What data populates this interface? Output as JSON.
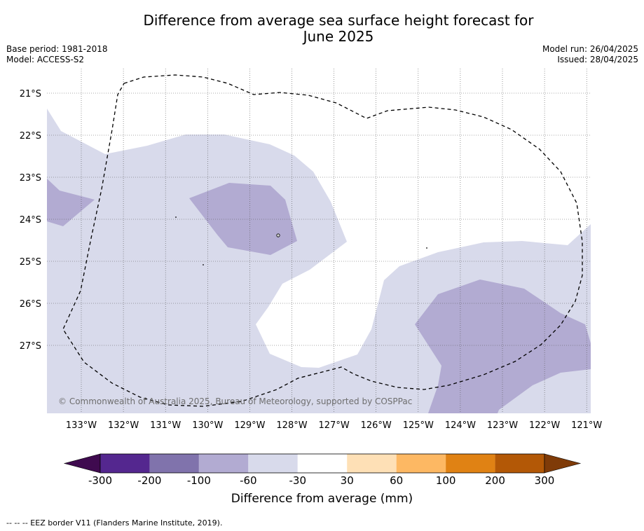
{
  "title_line1": "Difference from average sea surface height forecast for",
  "title_line2": "June 2025",
  "base_period": "Base period: 1981-2018",
  "model": "Model: ACCESS-S2",
  "model_run": "Model run: 26/04/2025",
  "issued": "Issued: 28/04/2025",
  "copyright": "© Commonwealth of Australia 2025, Bureau of Meteorology, supported by COSPPac",
  "lat_labels": [
    "21°S",
    "22°S",
    "23°S",
    "24°S",
    "25°S",
    "26°S",
    "27°S"
  ],
  "lon_labels": [
    "133°W",
    "132°W",
    "131°W",
    "130°W",
    "129°W",
    "128°W",
    "127°W",
    "126°W",
    "125°W",
    "124°W",
    "123°W",
    "122°W",
    "121°W"
  ],
  "colorbar": {
    "label": "Difference from average (mm)",
    "ticks": [
      "-300",
      "-200",
      "-100",
      "-60",
      "-30",
      "30",
      "60",
      "100",
      "200",
      "300"
    ],
    "colors": [
      "#3f0a4f",
      "#54278f",
      "#8073ac",
      "#b2abd2",
      "#d8daeb",
      "#ffffff",
      "#fee0b6",
      "#fdb863",
      "#e08214",
      "#b35806",
      "#7f3b08"
    ]
  },
  "legend_colors": {
    "lt_minus60": "#d8daeb",
    "lt_minus100": "#b2abd2"
  },
  "footnote": "--  --  -- EEZ border V11 (Flanders Marine Institute, 2019)."
}
